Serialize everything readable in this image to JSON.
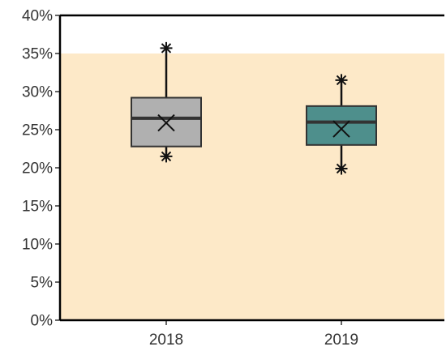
{
  "chart_data": {
    "type": "box",
    "title": "",
    "xlabel": "",
    "ylabel": "",
    "categories": [
      "2018",
      "2019"
    ],
    "ylim": [
      0,
      0.4
    ],
    "y_ticks": [
      0,
      0.05,
      0.1,
      0.15,
      0.2,
      0.25,
      0.3,
      0.35,
      0.4
    ],
    "y_tick_labels": [
      "0%",
      "5%",
      "10%",
      "15%",
      "20%",
      "25%",
      "30%",
      "35%",
      "40%"
    ],
    "background_band": {
      "from": 0,
      "to": 0.35,
      "color": "#fde9c8"
    },
    "grid": false,
    "legend": "none",
    "boxes": [
      {
        "category": "2018",
        "whisker_low": 0.215,
        "q1": 0.228,
        "median": 0.265,
        "q3": 0.292,
        "whisker_high": 0.357,
        "mean": 0.259,
        "color": "#b0b0b0"
      },
      {
        "category": "2019",
        "whisker_low": 0.199,
        "q1": 0.23,
        "median": 0.26,
        "q3": 0.281,
        "whisker_high": 0.315,
        "mean": 0.251,
        "color": "#4e8f8c"
      }
    ]
  }
}
